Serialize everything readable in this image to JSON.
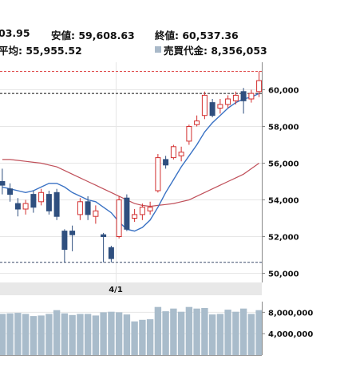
{
  "header": {
    "high_partial": "03.95",
    "low_label": "安値: 59,608.63",
    "close_label": "終値: 60,537.36",
    "avg_partial": "平均: 55,955.52",
    "turnover_label": "売買代金: 8,356,053"
  },
  "colors": {
    "up": "#d32f2f",
    "down": "#2f4f7f",
    "ma_short": "#3a72c4",
    "ma_long": "#c0505a",
    "volume": "#a9bccb",
    "hline_high": "#e05050",
    "hline_low": "#3a4a6a"
  },
  "chart_data": {
    "type": "candlestick",
    "date_label": "4/1",
    "ylim": [
      49500,
      61500
    ],
    "y_ticks": [
      50000,
      52000,
      54000,
      56000,
      58000,
      60000
    ],
    "y_tick_labels": [
      "50,000",
      "52,000",
      "54,000",
      "56,000",
      "58,000",
      "60,000"
    ],
    "reference_lines": {
      "high": 61000,
      "current": 59800,
      "low": 50600
    },
    "candles": [
      {
        "o": 55000,
        "c": 54800,
        "h": 55700,
        "l": 54300
      },
      {
        "o": 54600,
        "c": 54300,
        "h": 54900,
        "l": 53900
      },
      {
        "o": 53800,
        "c": 53500,
        "h": 54100,
        "l": 53100
      },
      {
        "o": 53500,
        "c": 53800,
        "h": 54000,
        "l": 53200
      },
      {
        "o": 54300,
        "c": 53600,
        "h": 54500,
        "l": 53300
      },
      {
        "o": 53900,
        "c": 54400,
        "h": 54600,
        "l": 53700
      },
      {
        "o": 54300,
        "c": 53400,
        "h": 54500,
        "l": 53200
      },
      {
        "o": 54400,
        "c": 53100,
        "h": 54600,
        "l": 52900
      },
      {
        "o": 52300,
        "c": 51300,
        "h": 52400,
        "l": 50600
      },
      {
        "o": 52300,
        "c": 52100,
        "h": 52600,
        "l": 51200
      },
      {
        "o": 53200,
        "c": 53900,
        "h": 54100,
        "l": 52900
      },
      {
        "o": 53900,
        "c": 53200,
        "h": 54200,
        "l": 52900
      },
      {
        "o": 53100,
        "c": 53400,
        "h": 53700,
        "l": 52700
      },
      {
        "o": 52100,
        "c": 52000,
        "h": 52200,
        "l": 50600
      },
      {
        "o": 51400,
        "c": 50800,
        "h": 51500,
        "l": 50600
      },
      {
        "o": 52000,
        "c": 54000,
        "h": 54200,
        "l": 51900
      },
      {
        "o": 54100,
        "c": 52400,
        "h": 54300,
        "l": 52300
      },
      {
        "o": 53000,
        "c": 53200,
        "h": 53500,
        "l": 52800
      },
      {
        "o": 53200,
        "c": 53600,
        "h": 53800,
        "l": 52900
      },
      {
        "o": 53400,
        "c": 53600,
        "h": 53900,
        "l": 53200
      },
      {
        "o": 54500,
        "c": 56300,
        "h": 56500,
        "l": 54400
      },
      {
        "o": 56200,
        "c": 55900,
        "h": 56400,
        "l": 55700
      },
      {
        "o": 56300,
        "c": 56900,
        "h": 57000,
        "l": 56200
      },
      {
        "o": 56400,
        "c": 56600,
        "h": 56900,
        "l": 56100
      },
      {
        "o": 57200,
        "c": 58000,
        "h": 58100,
        "l": 57000
      },
      {
        "o": 58100,
        "c": 58300,
        "h": 58600,
        "l": 58000
      },
      {
        "o": 58600,
        "c": 59700,
        "h": 59900,
        "l": 58400
      },
      {
        "o": 59300,
        "c": 58600,
        "h": 59500,
        "l": 58500
      },
      {
        "o": 59000,
        "c": 59200,
        "h": 59500,
        "l": 58700
      },
      {
        "o": 59200,
        "c": 59500,
        "h": 59700,
        "l": 59000
      },
      {
        "o": 59400,
        "c": 59700,
        "h": 59900,
        "l": 59200
      },
      {
        "o": 59900,
        "c": 59400,
        "h": 60100,
        "l": 58700
      },
      {
        "o": 59500,
        "c": 59800,
        "h": 60000,
        "l": 59300
      },
      {
        "o": 59900,
        "c": 60500,
        "h": 61000,
        "l": 59600
      }
    ],
    "ma_short": [
      54700,
      54600,
      54500,
      54400,
      54500,
      54700,
      54900,
      54900,
      54700,
      54400,
      54200,
      54000,
      53900,
      53600,
      53300,
      52800,
      52400,
      52300,
      52500,
      52900,
      53600,
      54400,
      55100,
      55800,
      56400,
      57000,
      57700,
      58200,
      58600,
      59000,
      59300,
      59500,
      59600,
      59800
    ],
    "ma_long": [
      56200,
      56200,
      56150,
      56100,
      56050,
      56000,
      55900,
      55800,
      55600,
      55400,
      55200,
      55000,
      54800,
      54600,
      54400,
      54200,
      54000,
      53800,
      53700,
      53650,
      53700,
      53750,
      53800,
      53900,
      54000,
      54200,
      54400,
      54600,
      54800,
      55000,
      55200,
      55400,
      55700,
      56000
    ],
    "volume": {
      "ylim": [
        0,
        10000000
      ],
      "y_ticks": [
        4000000,
        8000000
      ],
      "y_tick_labels": [
        "4,000,000",
        "8,000,000"
      ],
      "values": [
        7700000,
        7800000,
        7900000,
        7700000,
        7300000,
        7400000,
        7700000,
        8400000,
        7800000,
        7500000,
        7700000,
        7700000,
        7400000,
        8000000,
        8100000,
        8000000,
        7600000,
        6300000,
        6600000,
        6700000,
        9000000,
        8200000,
        8700000,
        8100000,
        9000000,
        8700000,
        8800000,
        7600000,
        7700000,
        8500000,
        8100000,
        8700000,
        7700000,
        8400000
      ]
    }
  }
}
